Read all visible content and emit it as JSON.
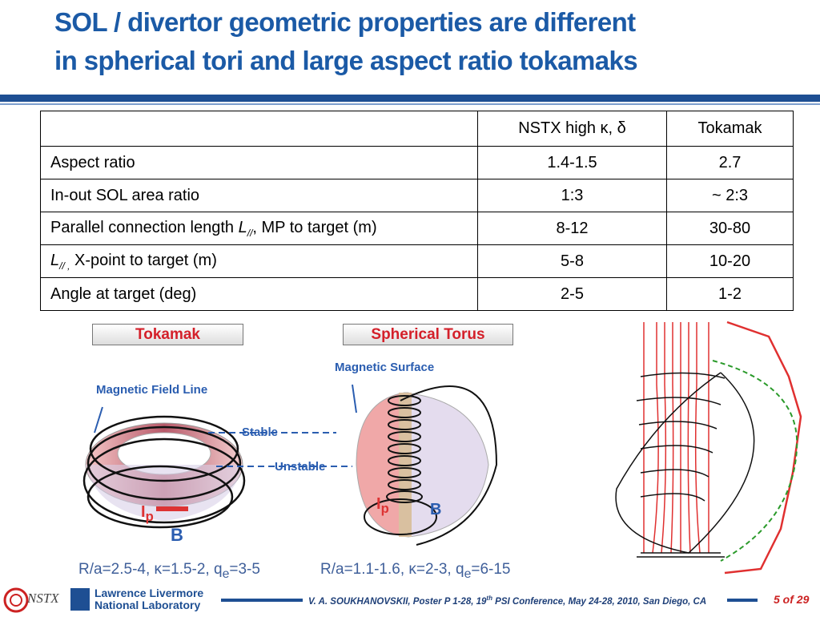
{
  "header": {
    "title_lines": [
      "SOL / divertor geometric properties are different",
      "in spherical tori and large aspect ratio tokamaks"
    ]
  },
  "table": {
    "header": [
      "NSTX high κ, δ",
      "Tokamak"
    ],
    "rows": [
      {
        "label": {
          "text": "Aspect ratio"
        },
        "cells": [
          "1.4-1.5",
          "2.7"
        ]
      },
      {
        "label": {
          "text": "In-out SOL area ratio"
        },
        "cells": [
          "1:3",
          "~ 2:3"
        ]
      },
      {
        "label": {
          "text": "Parallel connection length ",
          "var": "L",
          "sub": "//",
          "after": ", MP to target (m)"
        },
        "cells": [
          "8-12",
          "30-80"
        ]
      },
      {
        "label": {
          "var": "L",
          "sub": "// ,",
          "after": " X-point to target (m)"
        },
        "cells": [
          "5-8",
          "10-20"
        ]
      },
      {
        "label": {
          "text": "Angle at target (deg)"
        },
        "cells": [
          "2-5",
          "1-2"
        ]
      }
    ]
  },
  "figure": {
    "tokamak": {
      "box": "Tokamak",
      "field_line": "Magnetic Field Line",
      "current": {
        "main": "I",
        "sub": "p"
      },
      "field": "B",
      "caption": {
        "before": "R/a=2.5-4, κ=1.5-2, q",
        "sub": "e",
        "after": "=3-5"
      }
    },
    "spherical_torus": {
      "box": "Spherical Torus",
      "surface": "Magnetic Surface",
      "current": {
        "main": "I",
        "sub": "p"
      },
      "field": "B",
      "caption": {
        "before": "R/a=1.1-1.6, κ=2-3, q",
        "sub": "e",
        "after": "=6-15"
      }
    },
    "stable": "Stable",
    "unstable": "Unstable"
  },
  "footer": {
    "nstx": "NSTX",
    "lab_lines": [
      "Lawrence Livermore",
      "National Laboratory"
    ],
    "citation": {
      "before": "V. A. SOUKHANOVSKII, Poster P 1-28, 19",
      "sup": "th",
      "after": " PSI Conference, May 24-28, 2010, San Diego, CA"
    },
    "page": "5 of 29"
  }
}
